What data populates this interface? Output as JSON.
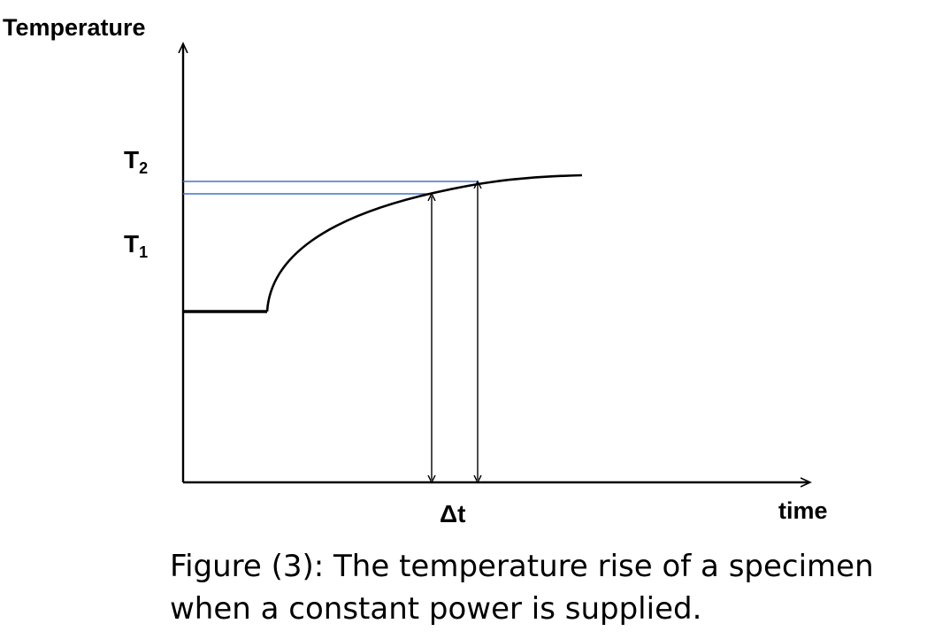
{
  "diagram": {
    "y_axis_label": "Temperature",
    "x_axis_label": "time",
    "t2_label": {
      "main": "T",
      "sub": "2"
    },
    "t1_label": {
      "main": "T",
      "sub": "1"
    },
    "delta_t_label": "Δt",
    "colors": {
      "axes": "#000000",
      "curve": "#000000",
      "reference_lines": "#4472c4",
      "arrows": "#000000"
    }
  },
  "caption": {
    "line1": "Figure (3): The temperature rise of a specimen",
    "line2": "when a constant power is supplied."
  }
}
